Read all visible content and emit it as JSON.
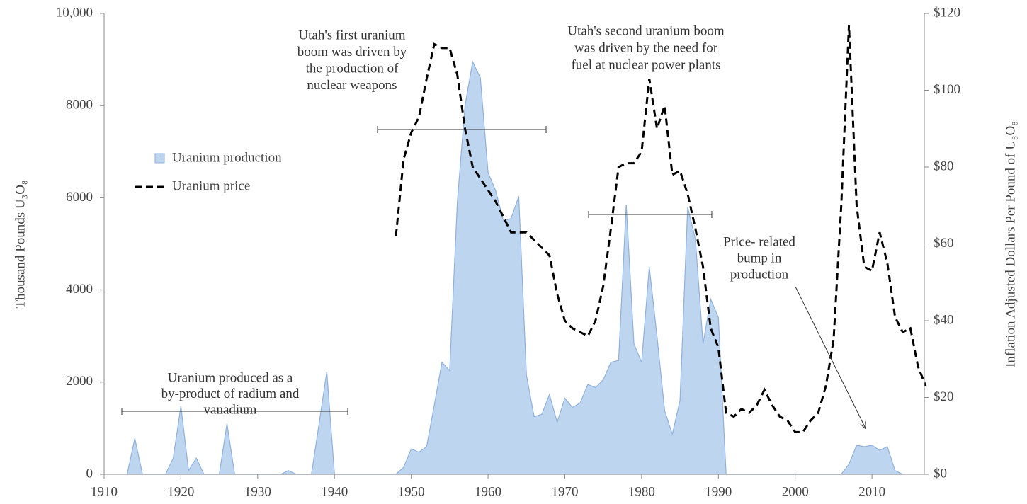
{
  "chart_data": {
    "type": "area-line",
    "y_label": "Thousand Pounds U₃O₈",
    "y2_label": "Inflation Adjusted Dollars Per Pound of U₃O₈",
    "xlim": [
      1910,
      2017
    ],
    "xticks": [
      1910,
      1920,
      1930,
      1940,
      1950,
      1960,
      1970,
      1980,
      1990,
      2000,
      2010
    ],
    "ylim": [
      0,
      10000
    ],
    "yticks": [
      0,
      2000,
      4000,
      6000,
      8000,
      {
        "value": 10000,
        "label": "10,000"
      }
    ],
    "y2lim": [
      0,
      120
    ],
    "y2ticks": [
      {
        "value": 0,
        "label": "$0"
      },
      {
        "value": 20,
        "label": "$20"
      },
      {
        "value": 40,
        "label": "$40"
      },
      {
        "value": 60,
        "label": "$60"
      },
      {
        "value": 80,
        "label": "$80"
      },
      {
        "value": 100,
        "label": "$100"
      },
      {
        "value": 120,
        "label": "$120"
      }
    ],
    "x": [
      1910,
      1911,
      1912,
      1913,
      1914,
      1915,
      1916,
      1917,
      1918,
      1919,
      1920,
      1921,
      1922,
      1923,
      1924,
      1925,
      1926,
      1927,
      1928,
      1929,
      1930,
      1931,
      1932,
      1933,
      1934,
      1935,
      1936,
      1937,
      1938,
      1939,
      1940,
      1941,
      1942,
      1943,
      1944,
      1945,
      1946,
      1947,
      1948,
      1949,
      1950,
      1951,
      1952,
      1953,
      1954,
      1955,
      1956,
      1957,
      1958,
      1959,
      1960,
      1961,
      1962,
      1963,
      1964,
      1965,
      1966,
      1967,
      1968,
      1969,
      1970,
      1971,
      1972,
      1973,
      1974,
      1975,
      1976,
      1977,
      1978,
      1979,
      1980,
      1981,
      1982,
      1983,
      1984,
      1985,
      1986,
      1987,
      1988,
      1989,
      1990,
      1991,
      1992,
      1993,
      1994,
      1995,
      1996,
      1997,
      1998,
      1999,
      2000,
      2001,
      2002,
      2003,
      2004,
      2005,
      2006,
      2007,
      2008,
      2009,
      2010,
      2011,
      2012,
      2013,
      2014,
      2015,
      2016,
      2017
    ],
    "series": [
      {
        "name": "Uranium production",
        "color": "#bdd5ef",
        "line_color": "#8fb1dd",
        "kind": "area",
        "values": [
          null,
          null,
          null,
          0,
          780,
          0,
          0,
          0,
          0,
          350,
          1480,
          80,
          350,
          0,
          0,
          0,
          1100,
          0,
          0,
          0,
          0,
          0,
          0,
          0,
          80,
          0,
          0,
          0,
          1100,
          2230,
          0,
          0,
          0,
          0,
          0,
          0,
          0,
          0,
          0,
          150,
          550,
          480,
          600,
          1500,
          2430,
          2250,
          5900,
          8000,
          8950,
          8600,
          6550,
          6150,
          5500,
          5550,
          6030,
          2150,
          1250,
          1300,
          1730,
          1130,
          1650,
          1450,
          1550,
          1950,
          1880,
          2050,
          2430,
          2470,
          5850,
          2830,
          2430,
          4500,
          3000,
          1380,
          870,
          1600,
          5800,
          5100,
          2830,
          3800,
          3400,
          0,
          0,
          0,
          0,
          0,
          0,
          0,
          0,
          0,
          0,
          0,
          0,
          0,
          0,
          0,
          0,
          220,
          630,
          600,
          630,
          520,
          600,
          80,
          0,
          null,
          null,
          null
        ]
      },
      {
        "name": "Uranium price",
        "color": "#000000",
        "kind": "line",
        "axis": "y2",
        "values": [
          null,
          null,
          null,
          null,
          null,
          null,
          null,
          null,
          null,
          null,
          null,
          null,
          null,
          null,
          null,
          null,
          null,
          null,
          null,
          null,
          null,
          null,
          null,
          null,
          null,
          null,
          null,
          null,
          null,
          null,
          null,
          null,
          null,
          null,
          null,
          null,
          null,
          null,
          62,
          82,
          89,
          93,
          103,
          112,
          111,
          111,
          104,
          90,
          80,
          77,
          74,
          71,
          67,
          63,
          63,
          63,
          61,
          59,
          57,
          47,
          40,
          38,
          37,
          36,
          40,
          49,
          64,
          80,
          81,
          81,
          84,
          103,
          90,
          96,
          78,
          79,
          73,
          64,
          54,
          38,
          33,
          16,
          15,
          17,
          16,
          18,
          22,
          18,
          15,
          14,
          11,
          11,
          14,
          16,
          23,
          35,
          70,
          117,
          70,
          54,
          53,
          63,
          55,
          41,
          37,
          38,
          28,
          23
        ]
      }
    ],
    "annotations": [
      [
        "Uranium produced as a",
        "by-product of radium and",
        "vanadium"
      ],
      [
        "Utah's first uranium",
        "boom was driven by",
        "the production of",
        "nuclear weapons"
      ],
      [
        "Utah's second uranium boom",
        "was driven by the need for",
        "fuel at nuclear power plants"
      ],
      [
        "Price- related",
        "bump in",
        "production"
      ]
    ]
  }
}
